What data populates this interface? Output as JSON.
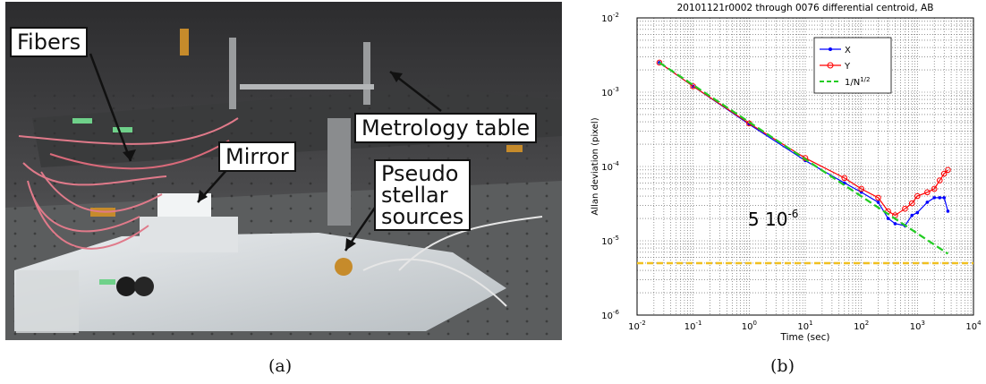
{
  "figure": {
    "panel_a_label": "(a)",
    "panel_b_label": "(b)",
    "photo_callouts": {
      "fibers": "Fibers",
      "mirror": "Mirror",
      "metrology_table": "Metrology table",
      "pseudo_stellar_line1": "Pseudo",
      "pseudo_stellar_line2": "stellar",
      "pseudo_stellar_line3": "sources"
    }
  },
  "chart_data": {
    "type": "line",
    "title": "20101121r0002 through 0076 differential centroid, AB",
    "xlabel": "Time (sec)",
    "ylabel": "Allan deviation (pixel)",
    "xscale": "log",
    "yscale": "log",
    "xlim": [
      0.01,
      10000
    ],
    "ylim": [
      1e-06,
      0.01
    ],
    "x_ticks": [
      "10^-2",
      "10^-1",
      "10^0",
      "10^1",
      "10^2",
      "10^3",
      "10^4"
    ],
    "y_ticks": [
      "10^-6",
      "10^-5",
      "10^-4",
      "10^-3",
      "10^-2"
    ],
    "grid": true,
    "legend_position": "top-right",
    "annotation": "5 10^-6",
    "reference_level": 5e-06,
    "series": [
      {
        "name": "X",
        "color": "#0000ff",
        "marker": "dot",
        "x": [
          0.025,
          0.1,
          1,
          10,
          50,
          100,
          200,
          300,
          400,
          600,
          800,
          1000,
          1500,
          2000,
          2500,
          3000,
          3500
        ],
        "y": [
          0.0025,
          0.0012,
          0.00037,
          0.00012,
          6e-05,
          4.5e-05,
          3.3e-05,
          2e-05,
          1.7e-05,
          1.6e-05,
          2.2e-05,
          2.4e-05,
          3.3e-05,
          3.8e-05,
          3.8e-05,
          3.8e-05,
          2.5e-05
        ]
      },
      {
        "name": "Y",
        "color": "#ff0000",
        "marker": "circle",
        "x": [
          0.025,
          0.1,
          1,
          10,
          50,
          100,
          200,
          300,
          400,
          600,
          800,
          1000,
          1500,
          2000,
          2500,
          3000,
          3500
        ],
        "y": [
          0.0025,
          0.0012,
          0.00038,
          0.00013,
          7e-05,
          5e-05,
          3.8e-05,
          2.5e-05,
          2.2e-05,
          2.7e-05,
          3.2e-05,
          4e-05,
          4.5e-05,
          5e-05,
          6.5e-05,
          8e-05,
          9e-05
        ]
      },
      {
        "name": "1/N^1/2",
        "color": "#22cc22",
        "style": "dashed",
        "x": [
          0.025,
          3500
        ],
        "y": [
          0.0025,
          6.7e-06
        ]
      }
    ]
  },
  "colors": {
    "reference_line": "#f0c020"
  }
}
